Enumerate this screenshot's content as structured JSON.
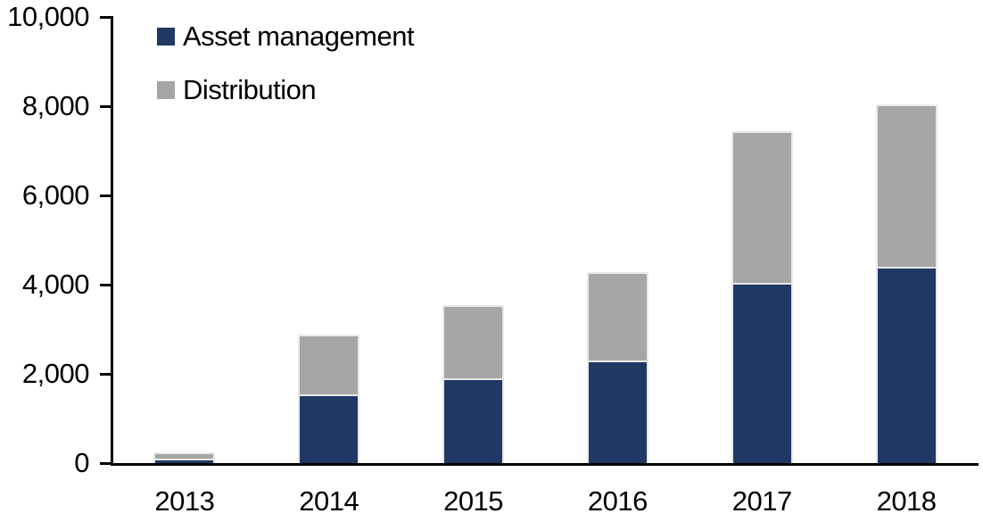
{
  "chart_data": {
    "type": "bar",
    "stacked": true,
    "title": "",
    "xlabel": "",
    "ylabel": "",
    "categories": [
      "2013",
      "2014",
      "2015",
      "2016",
      "2017",
      "2018"
    ],
    "series": [
      {
        "name": "Asset management",
        "color": "#1F3864",
        "values": [
          100,
          1550,
          1900,
          2300,
          4050,
          4400
        ]
      },
      {
        "name": "Distribution",
        "color": "#A6A6A6",
        "values": [
          100,
          1300,
          1600,
          1950,
          3350,
          3600
        ]
      }
    ],
    "ylim": [
      0,
      10000
    ],
    "yticks": [
      0,
      2000,
      4000,
      6000,
      8000,
      10000
    ],
    "ytick_labels": [
      "0",
      "2,000",
      "4,000",
      "6,000",
      "8,000",
      "10,000"
    ],
    "grid": false,
    "legend_position": "top-left-inside"
  },
  "colors": {
    "axis": "#000000",
    "text": "#000000",
    "background": "#FFFFFF",
    "bar_border": "#E9E9E9"
  }
}
